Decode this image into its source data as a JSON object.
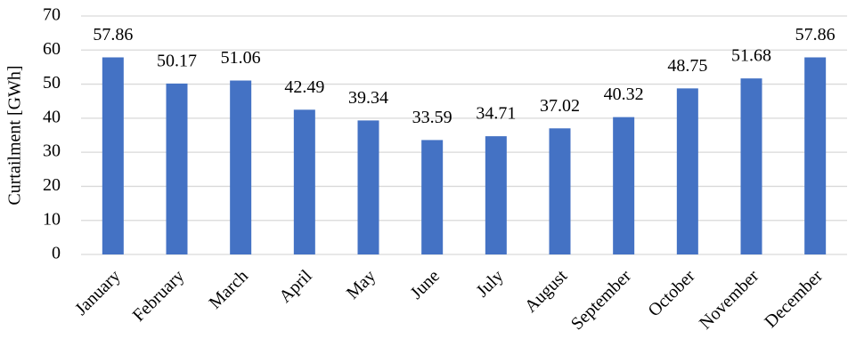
{
  "chart_data": {
    "type": "bar",
    "y_label": "Curtailment [GWh]",
    "categories": [
      "January",
      "February",
      "March",
      "April",
      "May",
      "June",
      "July",
      "August",
      "September",
      "October",
      "November",
      "December"
    ],
    "values": [
      57.86,
      50.17,
      51.06,
      42.49,
      39.34,
      33.59,
      34.71,
      37.02,
      40.32,
      48.75,
      51.68,
      57.86
    ],
    "color": "#4472c4",
    "ylim": [
      0,
      70
    ],
    "yticks": [
      0,
      10,
      20,
      30,
      40,
      50,
      60,
      70
    ],
    "grid": true
  }
}
